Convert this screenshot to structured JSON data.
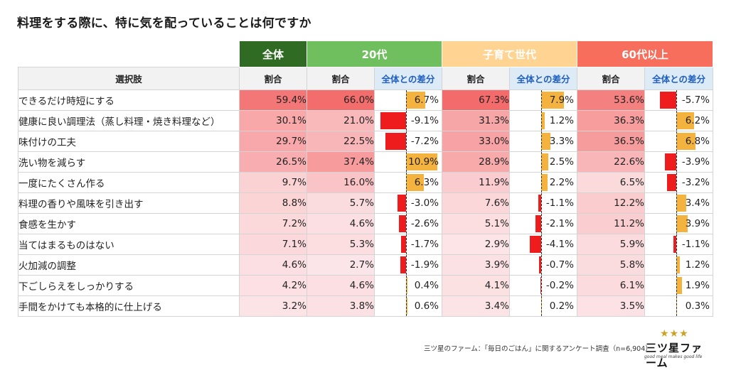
{
  "title": "料理をする際に、特に気を配っていることは何ですか",
  "groups": [
    {
      "label": "全体",
      "color": "#2f6b22"
    },
    {
      "label": "20代",
      "color": "#70bf5e"
    },
    {
      "label": "子育て世代",
      "color": "#ffd391"
    },
    {
      "label": "60代以上",
      "color": "#f76e5c"
    }
  ],
  "headers": {
    "item": "選択肢",
    "ratio": "割合",
    "diff": "全体との差分"
  },
  "rows": [
    {
      "label": "できるだけ時短にする",
      "all": "59.4%",
      "g20": "66.0%",
      "g20d": "6.7%",
      "kid": "67.3%",
      "kidd": "7.9%",
      "g60": "53.6%",
      "g60d": "-5.7%"
    },
    {
      "label": "健康に良い調理法（蒸し料理・焼き料理など）",
      "all": "30.1%",
      "g20": "21.0%",
      "g20d": "-9.1%",
      "kid": "31.3%",
      "kidd": "1.2%",
      "g60": "36.3%",
      "g60d": "6.2%"
    },
    {
      "label": "味付けの工夫",
      "all": "29.7%",
      "g20": "22.5%",
      "g20d": "-7.2%",
      "kid": "33.0%",
      "kidd": "3.3%",
      "g60": "36.5%",
      "g60d": "6.8%"
    },
    {
      "label": "洗い物を減らす",
      "all": "26.5%",
      "g20": "37.4%",
      "g20d": "10.9%",
      "kid": "28.9%",
      "kidd": "2.5%",
      "g60": "22.6%",
      "g60d": "-3.9%"
    },
    {
      "label": "一度にたくさん作る",
      "all": "9.7%",
      "g20": "16.0%",
      "g20d": "6.3%",
      "kid": "11.9%",
      "kidd": "2.2%",
      "g60": "6.5%",
      "g60d": "-3.2%"
    },
    {
      "label": "料理の香りや風味を引き出す",
      "all": "8.8%",
      "g20": "5.7%",
      "g20d": "-3.0%",
      "kid": "7.6%",
      "kidd": "-1.1%",
      "g60": "12.2%",
      "g60d": "3.4%"
    },
    {
      "label": "食感を生かす",
      "all": "7.2%",
      "g20": "4.6%",
      "g20d": "-2.6%",
      "kid": "5.1%",
      "kidd": "-2.1%",
      "g60": "11.2%",
      "g60d": "3.9%"
    },
    {
      "label": "当てはまるものはない",
      "all": "7.1%",
      "g20": "5.3%",
      "g20d": "-1.7%",
      "kid": "2.9%",
      "kidd": "-4.1%",
      "g60": "5.9%",
      "g60d": "-1.1%"
    },
    {
      "label": "火加減の調整",
      "all": "4.6%",
      "g20": "2.7%",
      "g20d": "-1.9%",
      "kid": "3.9%",
      "kidd": "-0.7%",
      "g60": "5.8%",
      "g60d": "1.2%"
    },
    {
      "label": "下ごしらえをしっかりする",
      "all": "4.2%",
      "g20": "4.6%",
      "g20d": "0.4%",
      "kid": "4.1%",
      "kidd": "-0.2%",
      "g60": "6.1%",
      "g60d": "1.9%"
    },
    {
      "label": "手間をかけても本格的に仕上げる",
      "all": "3.2%",
      "g20": "3.8%",
      "g20d": "0.6%",
      "kid": "3.4%",
      "kidd": "0.2%",
      "g60": "3.5%",
      "g60d": "0.3%"
    }
  ],
  "footer": "三ツ星のファーム：「毎日のごはん」に関するアンケート調査（n=6,904）",
  "logo": {
    "stars": "★★★",
    "name": "三ツ星ファーム",
    "tagline": "good meal makes good life"
  },
  "chart_data": {
    "type": "table",
    "title": "料理をする際に、特に気を配っていることは何ですか",
    "categories": [
      "できるだけ時短にする",
      "健康に良い調理法（蒸し料理・焼き料理など）",
      "味付けの工夫",
      "洗い物を減らす",
      "一度にたくさん作る",
      "料理の香りや風味を引き出す",
      "食感を生かす",
      "当てはまるものはない",
      "火加減の調整",
      "下ごしらえをしっかりする",
      "手間をかけても本格的に仕上げる"
    ],
    "series": [
      {
        "name": "全体 割合",
        "values": [
          59.4,
          30.1,
          29.7,
          26.5,
          9.7,
          8.8,
          7.2,
          7.1,
          4.6,
          4.2,
          3.2
        ]
      },
      {
        "name": "20代 割合",
        "values": [
          66.0,
          21.0,
          22.5,
          37.4,
          16.0,
          5.7,
          4.6,
          5.3,
          2.7,
          4.6,
          3.8
        ]
      },
      {
        "name": "20代 全体との差分",
        "values": [
          6.7,
          -9.1,
          -7.2,
          10.9,
          6.3,
          -3.0,
          -2.6,
          -1.7,
          -1.9,
          0.4,
          0.6
        ]
      },
      {
        "name": "子育て世代 割合",
        "values": [
          67.3,
          31.3,
          33.0,
          28.9,
          11.9,
          7.6,
          5.1,
          2.9,
          3.9,
          4.1,
          3.4
        ]
      },
      {
        "name": "子育て世代 全体との差分",
        "values": [
          7.9,
          1.2,
          3.3,
          2.5,
          2.2,
          -1.1,
          -2.1,
          -4.1,
          -0.7,
          -0.2,
          0.2
        ]
      },
      {
        "name": "60代以上 割合",
        "values": [
          53.6,
          36.3,
          36.5,
          22.6,
          6.5,
          12.2,
          11.2,
          5.9,
          5.8,
          6.1,
          3.5
        ]
      },
      {
        "name": "60代以上 全体との差分",
        "values": [
          -5.7,
          6.2,
          6.8,
          -3.9,
          -3.2,
          3.4,
          3.9,
          -1.1,
          1.2,
          1.9,
          0.3
        ]
      }
    ],
    "colors": {
      "heat_high": "#f36b6b",
      "heat_low": "#fdf1f4",
      "diff_positive": "#f4b23e",
      "diff_negative": "#ee1c1c"
    }
  }
}
